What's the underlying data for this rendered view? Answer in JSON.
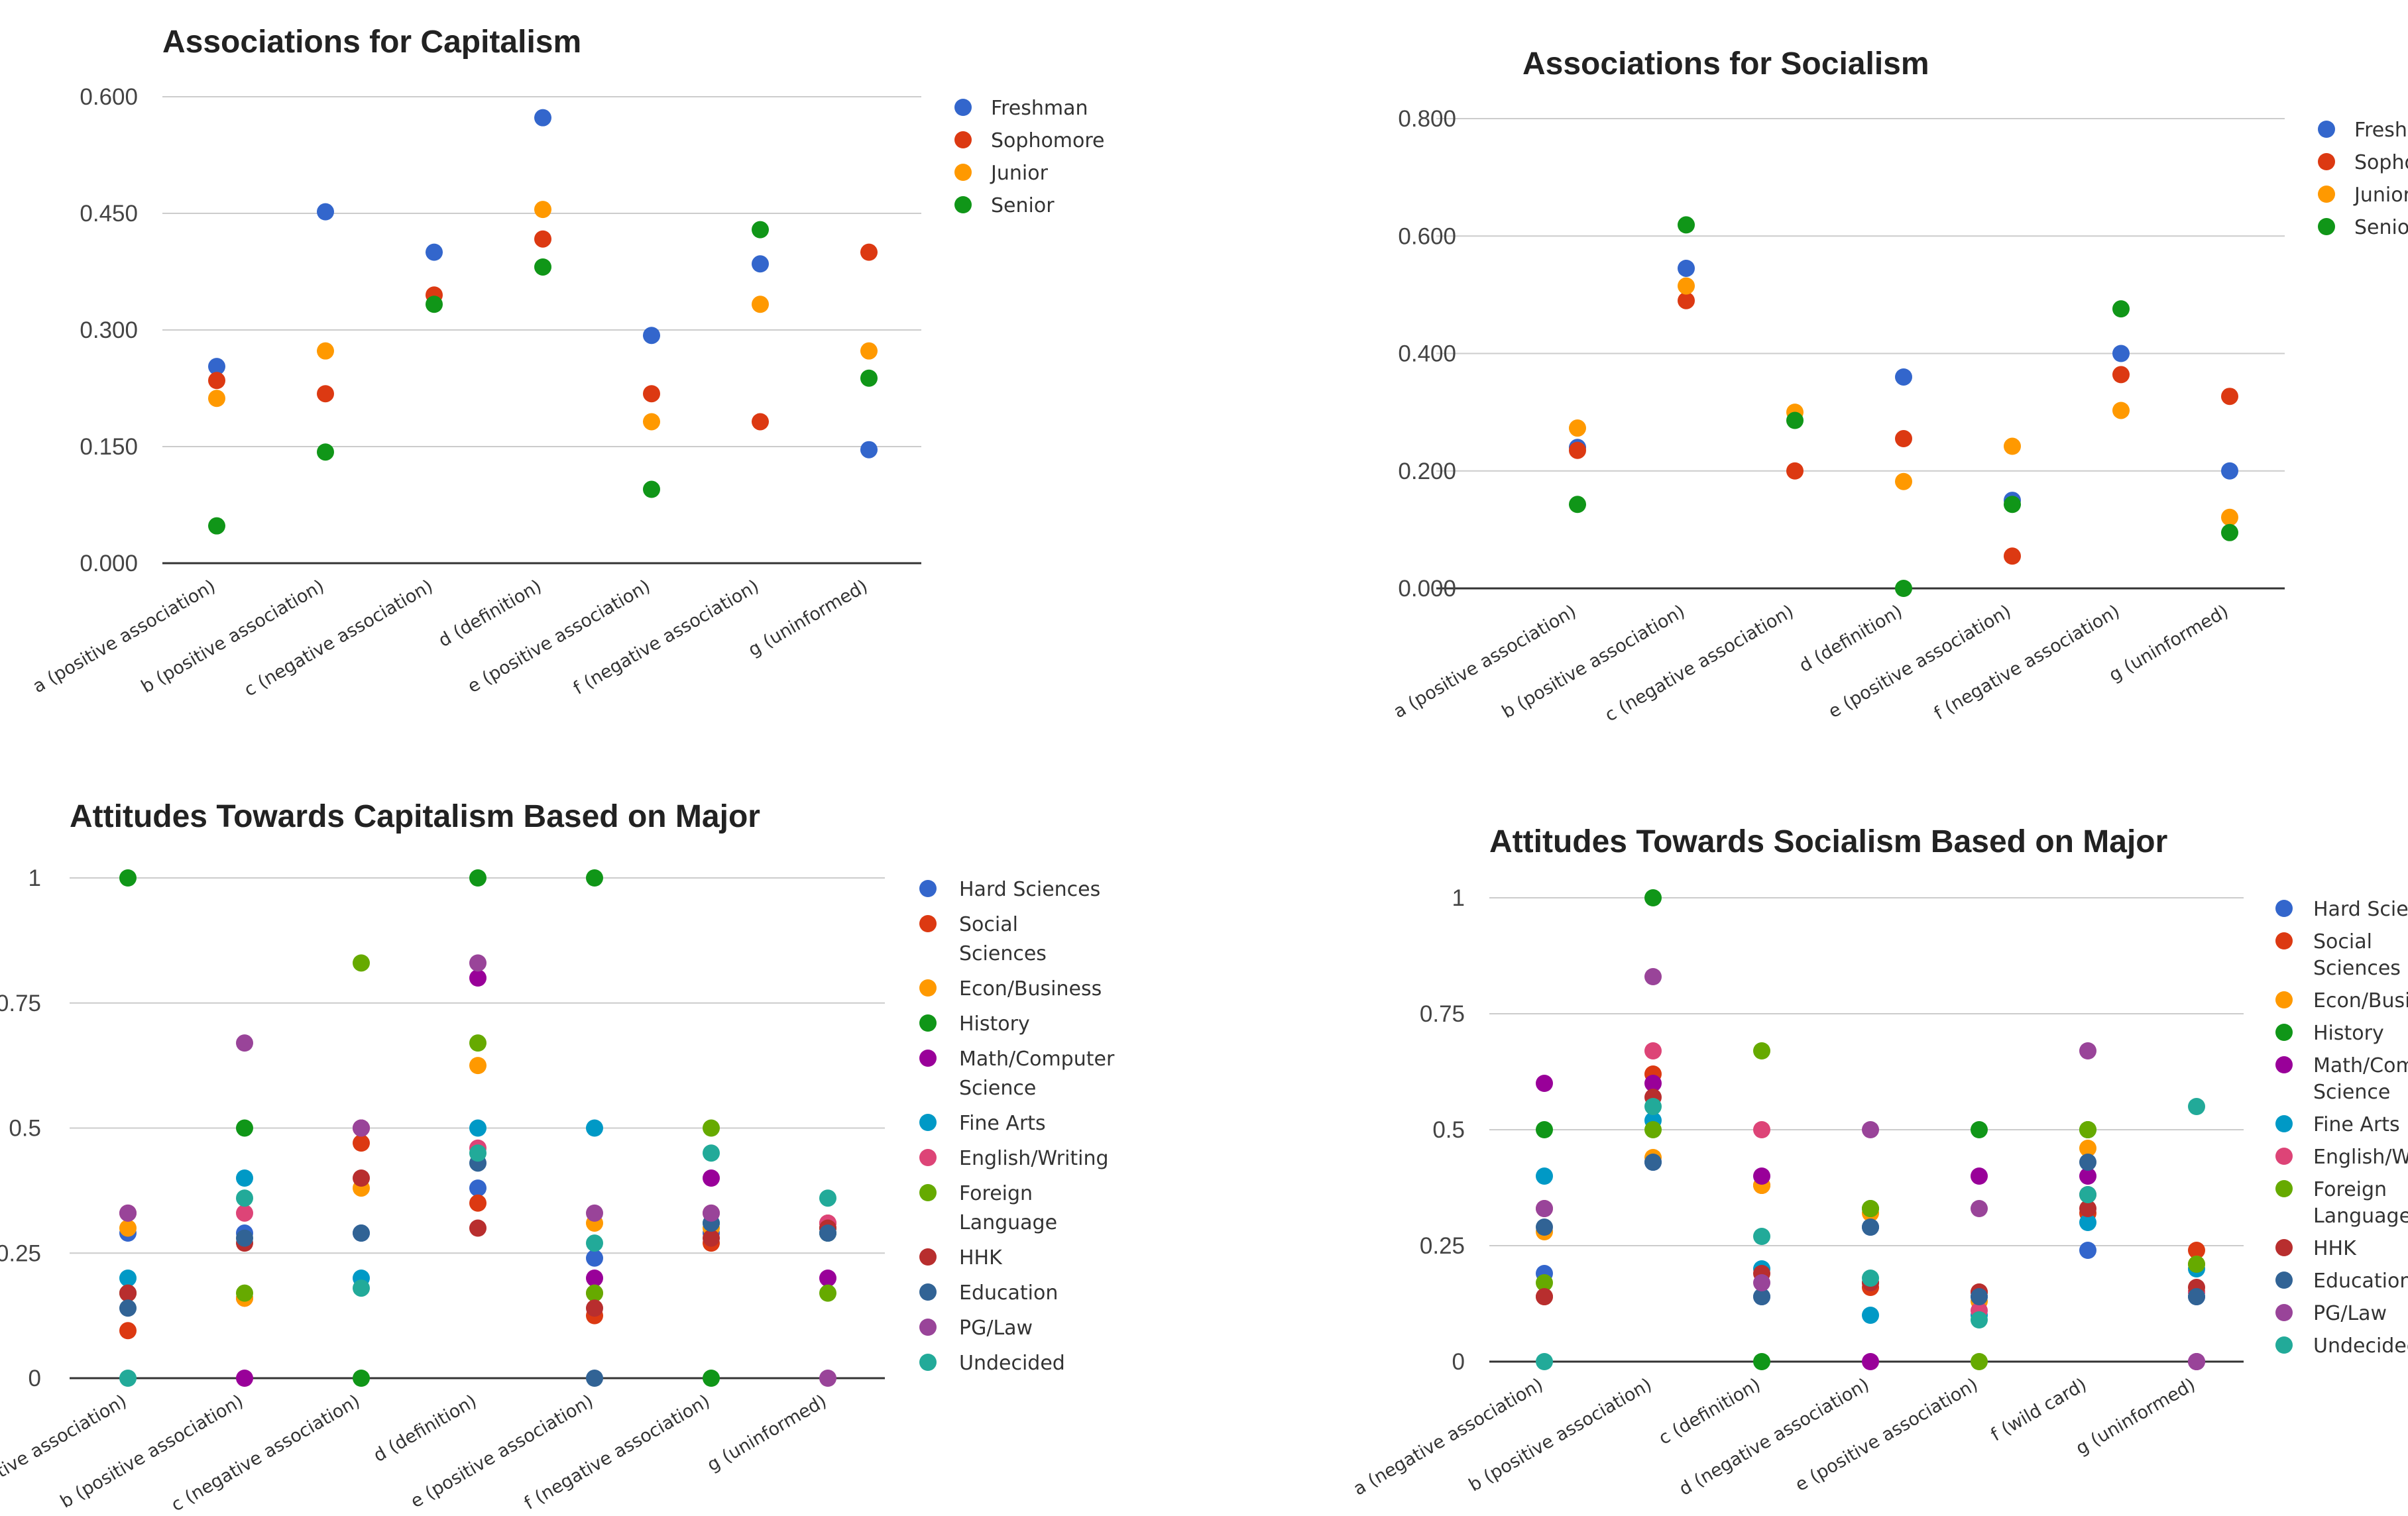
{
  "chart_data": [
    {
      "type": "scatter",
      "title": "Associations for Capitalism",
      "categories": [
        "a (positive association)",
        "b (positive association)",
        "c (negative association)",
        "d (definition)",
        "e (positive association)",
        "f (negative association)",
        "g (uninformed)"
      ],
      "ylim": [
        0,
        0.6
      ],
      "yticks": [
        "0.000",
        "0.150",
        "0.300",
        "0.450",
        "0.600"
      ],
      "grid": true,
      "legend_position": "right",
      "series": [
        {
          "name": "Freshman",
          "color": "#3366cc",
          "values": [
            0.253,
            0.452,
            0.4,
            0.573,
            0.293,
            0.385,
            0.146
          ]
        },
        {
          "name": "Sophomore",
          "color": "#dc3912",
          "values": [
            0.235,
            0.218,
            0.345,
            0.417,
            0.218,
            0.182,
            0.4
          ]
        },
        {
          "name": "Junior",
          "color": "#ff9900",
          "values": [
            0.212,
            0.273,
            null,
            0.455,
            0.182,
            0.333,
            0.273
          ]
        },
        {
          "name": "Senior",
          "color": "#109618",
          "values": [
            0.048,
            0.143,
            0.333,
            0.381,
            0.095,
            0.429,
            0.238
          ]
        }
      ]
    },
    {
      "type": "scatter",
      "title": "Associations for Socialism",
      "categories": [
        "a (positive association)",
        "b (positive association)",
        "c (negative association)",
        "d (definition)",
        "e (positive association)",
        "f (negative association)",
        "g (uninformed)"
      ],
      "ylim": [
        0,
        0.8
      ],
      "yticks": [
        "0.000",
        "0.200",
        "0.400",
        "0.600",
        "0.800"
      ],
      "grid": true,
      "legend_position": "right",
      "series": [
        {
          "name": "Freshman",
          "color": "#3366cc",
          "values": [
            0.24,
            0.545,
            null,
            0.36,
            0.15,
            0.4,
            0.2
          ]
        },
        {
          "name": "Sophomore",
          "color": "#dc3912",
          "values": [
            0.235,
            0.49,
            0.2,
            0.255,
            0.055,
            0.364,
            0.327
          ]
        },
        {
          "name": "Junior",
          "color": "#ff9900",
          "values": [
            0.273,
            0.515,
            0.3,
            0.182,
            0.242,
            0.303,
            0.121
          ]
        },
        {
          "name": "Senior",
          "color": "#109618",
          "values": [
            0.143,
            0.619,
            0.286,
            0.0,
            0.143,
            0.476,
            0.095
          ]
        }
      ]
    },
    {
      "type": "scatter",
      "title": "Attitudes Towards Capitalism Based on Major",
      "categories": [
        "a (positive association)",
        "b (positive association)",
        "c (negative association)",
        "d (definition)",
        "e (positive association)",
        "f (negative association)",
        "g (uninformed)"
      ],
      "ylim": [
        0,
        1
      ],
      "yticks": [
        "0",
        "0.25",
        "0.5",
        "0.75",
        "1"
      ],
      "grid": true,
      "legend_position": "right",
      "series": [
        {
          "name": "Hard Sciences",
          "color": "#3366cc",
          "values": [
            0.29,
            0.29,
            0.29,
            0.38,
            0.24,
            0.29,
            0.29
          ]
        },
        {
          "name": "Social Sciences",
          "color": "#dc3912",
          "values": [
            0.095,
            0.16,
            0.47,
            0.35,
            0.125,
            0.27,
            0.31
          ]
        },
        {
          "name": "Econ/Business",
          "color": "#ff9900",
          "values": [
            0.3,
            0.16,
            0.38,
            0.625,
            0.31,
            0.3,
            0.29
          ]
        },
        {
          "name": "History",
          "color": "#109618",
          "values": [
            1.0,
            0.5,
            0.0,
            1.0,
            1.0,
            0.0,
            0.3
          ]
        },
        {
          "name": "Math/Computer Science",
          "color": "#990099",
          "values": [
            0.17,
            0.0,
            0.5,
            0.8,
            0.2,
            0.4,
            0.2
          ]
        },
        {
          "name": "Fine Arts",
          "color": "#0099c6",
          "values": [
            0.2,
            0.4,
            0.2,
            0.5,
            0.5,
            0.31,
            0.29
          ]
        },
        {
          "name": "English/Writing",
          "color": "#dd4477",
          "values": [
            0.33,
            0.33,
            0.5,
            0.46,
            0.17,
            0.33,
            0.31
          ]
        },
        {
          "name": "Foreign Language",
          "color": "#66aa00",
          "values": [
            0.17,
            0.17,
            0.83,
            0.67,
            0.17,
            0.5,
            0.17
          ]
        },
        {
          "name": "HHK",
          "color": "#b82e2e",
          "values": [
            0.17,
            0.27,
            0.4,
            0.3,
            0.14,
            0.28,
            0.3
          ]
        },
        {
          "name": "Education",
          "color": "#316395",
          "values": [
            0.14,
            0.28,
            0.29,
            0.43,
            0.0,
            0.31,
            0.29
          ]
        },
        {
          "name": "PG/Law",
          "color": "#994499",
          "values": [
            0.33,
            0.67,
            0.5,
            0.83,
            0.33,
            0.33,
            0.0
          ]
        },
        {
          "name": "Undecided",
          "color": "#22aa99",
          "values": [
            0.0,
            0.36,
            0.18,
            0.45,
            0.27,
            0.45,
            0.36
          ]
        }
      ]
    },
    {
      "type": "scatter",
      "title": "Attitudes Towards Socialism Based on Major",
      "categories": [
        "a (negative association)",
        "b (positive association)",
        "c (definition)",
        "d (negative association)",
        "e (positive association)",
        "f (wild card)",
        "g (uninformed)"
      ],
      "ylim": [
        0,
        1
      ],
      "yticks": [
        "0",
        "0.25",
        "0.5",
        "0.75",
        "1"
      ],
      "grid": true,
      "legend_position": "right",
      "series": [
        {
          "name": "Hard Sciences",
          "color": "#3366cc",
          "values": [
            0.19,
            0.43,
            0.14,
            0.29,
            0.14,
            0.24,
            0.14
          ]
        },
        {
          "name": "Social Sciences",
          "color": "#dc3912",
          "values": [
            0.14,
            0.62,
            0.38,
            0.16,
            0.15,
            0.32,
            0.24
          ]
        },
        {
          "name": "Econ/Business",
          "color": "#ff9900",
          "values": [
            0.28,
            0.44,
            0.38,
            0.32,
            0.13,
            0.46,
            0.21
          ]
        },
        {
          "name": "History",
          "color": "#109618",
          "values": [
            0.5,
            1.0,
            0.0,
            0.33,
            0.5,
            0.5,
            0.15
          ]
        },
        {
          "name": "Math/Computer Science",
          "color": "#990099",
          "values": [
            0.6,
            0.6,
            0.4,
            0.0,
            0.4,
            0.4,
            0.0
          ]
        },
        {
          "name": "Fine Arts",
          "color": "#0099c6",
          "values": [
            0.4,
            0.52,
            0.2,
            0.1,
            0.1,
            0.3,
            0.2
          ]
        },
        {
          "name": "English/Writing",
          "color": "#dd4477",
          "values": [
            0.33,
            0.67,
            0.5,
            0.17,
            0.11,
            0.36,
            0.15
          ]
        },
        {
          "name": "Foreign Language",
          "color": "#66aa00",
          "values": [
            0.17,
            0.5,
            0.67,
            0.33,
            0.0,
            0.5,
            0.21
          ]
        },
        {
          "name": "HHK",
          "color": "#b82e2e",
          "values": [
            0.14,
            0.57,
            0.19,
            0.17,
            0.15,
            0.33,
            0.16
          ]
        },
        {
          "name": "Education",
          "color": "#316395",
          "values": [
            0.29,
            0.43,
            0.14,
            0.29,
            0.14,
            0.43,
            0.14
          ]
        },
        {
          "name": "PG/Law",
          "color": "#994499",
          "values": [
            0.33,
            0.83,
            0.17,
            0.5,
            0.33,
            0.67,
            0.0
          ]
        },
        {
          "name": "Undecided",
          "color": "#22aa99",
          "values": [
            0.0,
            0.55,
            0.27,
            0.18,
            0.09,
            0.36,
            0.55
          ]
        }
      ]
    }
  ]
}
